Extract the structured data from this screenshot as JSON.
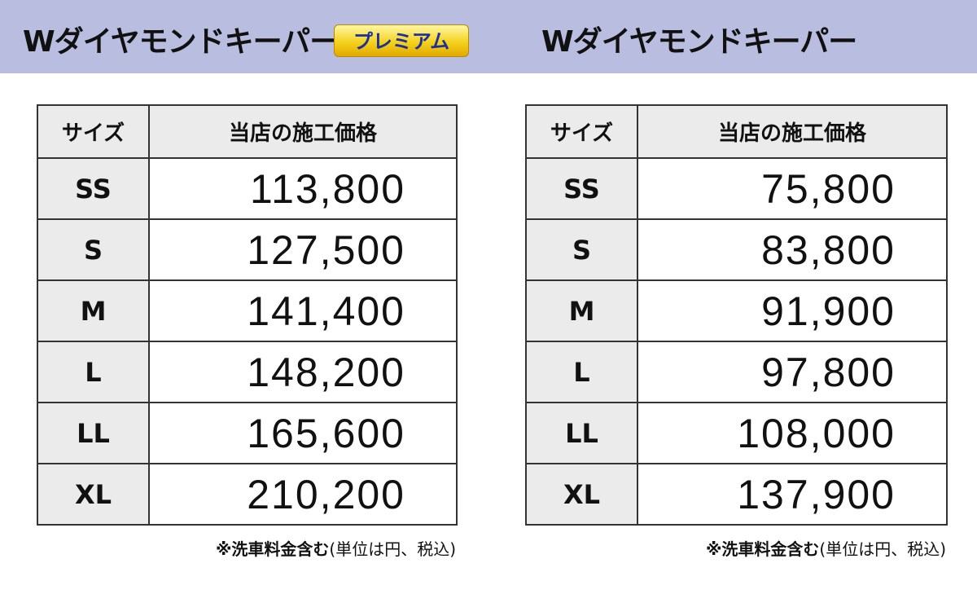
{
  "header": {
    "left_title": "Wダイヤモンドキーパー",
    "badge": "プレミアム",
    "right_title": "Wダイヤモンドキーパー"
  },
  "tables": [
    {
      "columns": [
        "サイズ",
        "当店の施工価格"
      ],
      "rows": [
        [
          "SS",
          "113,800"
        ],
        [
          "S",
          "127,500"
        ],
        [
          "M",
          "141,400"
        ],
        [
          "L",
          "148,200"
        ],
        [
          "LL",
          "165,600"
        ],
        [
          "XL",
          "210,200"
        ]
      ],
      "note": {
        "emphasis": "※洗車料金含む",
        "rest": "(単位は円、税込)"
      }
    },
    {
      "columns": [
        "サイズ",
        "当店の施工価格"
      ],
      "rows": [
        [
          "SS",
          "75,800"
        ],
        [
          "S",
          "83,800"
        ],
        [
          "M",
          "91,900"
        ],
        [
          "L",
          "97,800"
        ],
        [
          "LL",
          "108,000"
        ],
        [
          "XL",
          "137,900"
        ]
      ],
      "note": {
        "emphasis": "※洗車料金含む",
        "rest": "(単位は円、税込)"
      }
    }
  ]
}
